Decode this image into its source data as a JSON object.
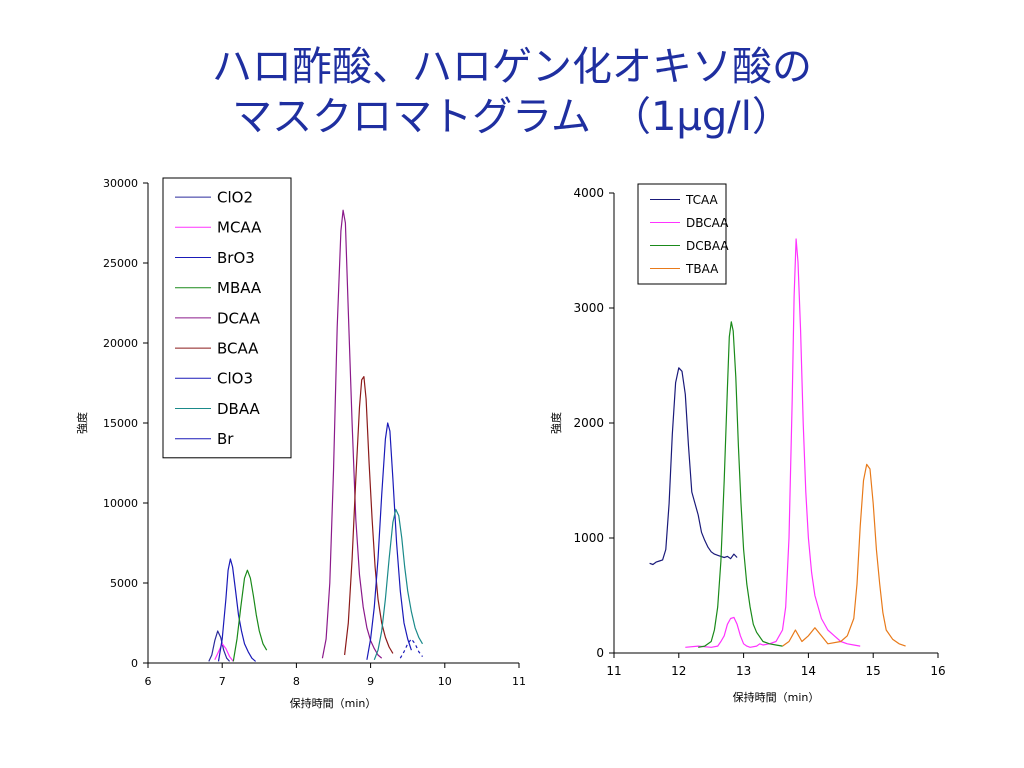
{
  "slide": {
    "title_line1": "ハロ酢酸、ハロゲン化オキソ酸の",
    "title_line2": "マスクロマトグラム　（1μg/l）"
  },
  "chart_data": [
    {
      "type": "line",
      "xlabel": "保持時間（min）",
      "ylabel": "強度",
      "xlim": [
        6,
        11
      ],
      "ylim": [
        0,
        30000
      ],
      "xticks": [
        6,
        7,
        8,
        9,
        10,
        11
      ],
      "yticks": [
        0,
        5000,
        10000,
        15000,
        20000,
        25000,
        30000
      ],
      "legend_position": "top-left",
      "series": [
        {
          "name": "ClO2",
          "color": "#2b2b9c",
          "dashed": false,
          "x": [
            6.82,
            6.86,
            6.9,
            6.94,
            6.98,
            7.02,
            7.06,
            7.1
          ],
          "y": [
            100,
            500,
            1400,
            2000,
            1600,
            800,
            300,
            100
          ]
        },
        {
          "name": "MCAA",
          "color": "#ff33ff",
          "dashed": false,
          "x": [
            6.9,
            6.95,
            7.0,
            7.05,
            7.1,
            7.15
          ],
          "y": [
            200,
            700,
            1200,
            900,
            400,
            100
          ]
        },
        {
          "name": "BrO3",
          "color": "#1a1ab8",
          "dashed": false,
          "x": [
            6.95,
            7.0,
            7.05,
            7.08,
            7.11,
            7.14,
            7.18,
            7.22,
            7.26,
            7.3,
            7.35,
            7.4,
            7.45
          ],
          "y": [
            100,
            1500,
            4000,
            5800,
            6500,
            6000,
            4500,
            3000,
            2000,
            1200,
            700,
            300,
            100
          ]
        },
        {
          "name": "MBAA",
          "color": "#1a8a1a",
          "dashed": false,
          "x": [
            7.15,
            7.2,
            7.25,
            7.3,
            7.34,
            7.38,
            7.42,
            7.46,
            7.5,
            7.55,
            7.6
          ],
          "y": [
            100,
            1500,
            3500,
            5300,
            5800,
            5300,
            4200,
            3000,
            2000,
            1200,
            800
          ]
        },
        {
          "name": "DCAA",
          "color": "#8b1a8b",
          "dashed": false,
          "x": [
            8.35,
            8.4,
            8.45,
            8.5,
            8.55,
            8.6,
            8.63,
            8.66,
            8.7,
            8.75,
            8.8,
            8.85,
            8.9,
            8.95,
            9.0,
            9.05,
            9.1,
            9.15
          ],
          "y": [
            300,
            1500,
            5000,
            12000,
            21000,
            27000,
            28300,
            27500,
            22000,
            15000,
            9000,
            5500,
            3500,
            2200,
            1400,
            900,
            500,
            300
          ]
        },
        {
          "name": "BCAA",
          "color": "#8b1a1a",
          "dashed": false,
          "x": [
            8.65,
            8.7,
            8.75,
            8.8,
            8.85,
            8.88,
            8.91,
            8.94,
            8.98,
            9.02,
            9.06,
            9.1,
            9.15,
            9.2,
            9.25,
            9.3
          ],
          "y": [
            500,
            2500,
            6500,
            11500,
            16000,
            17700,
            17900,
            16500,
            12500,
            9000,
            6000,
            4000,
            2500,
            1600,
            1000,
            600
          ]
        },
        {
          "name": "ClO3",
          "color": "#1a1ab8",
          "dashed": false,
          "x": [
            8.95,
            9.0,
            9.05,
            9.1,
            9.15,
            9.2,
            9.23,
            9.26,
            9.3,
            9.35,
            9.4,
            9.45,
            9.5,
            9.55
          ],
          "y": [
            200,
            1500,
            3500,
            6500,
            10500,
            14000,
            15000,
            14500,
            11500,
            7500,
            4500,
            2500,
            1500,
            800
          ]
        },
        {
          "name": "DBAA",
          "color": "#1a8a8a",
          "dashed": false,
          "x": [
            9.05,
            9.1,
            9.15,
            9.2,
            9.25,
            9.3,
            9.34,
            9.38,
            9.42,
            9.46,
            9.5,
            9.55,
            9.6,
            9.65,
            9.7
          ],
          "y": [
            200,
            800,
            2000,
            4000,
            6500,
            8800,
            9600,
            9200,
            7800,
            6000,
            4500,
            3200,
            2200,
            1600,
            1200
          ]
        },
        {
          "name": "Br",
          "color": "#1a1ab8",
          "dashed": true,
          "x": [
            9.4,
            9.45,
            9.5,
            9.55,
            9.6,
            9.65,
            9.7
          ],
          "y": [
            300,
            700,
            1200,
            1500,
            1200,
            700,
            400
          ]
        }
      ]
    },
    {
      "type": "line",
      "xlabel": "保持時間（min）",
      "ylabel": "強度",
      "xlim": [
        11,
        16
      ],
      "ylim": [
        0,
        4000
      ],
      "xticks": [
        11,
        12,
        13,
        14,
        15,
        16
      ],
      "yticks": [
        0,
        1000,
        2000,
        3000,
        4000
      ],
      "legend_position": "top-left",
      "series": [
        {
          "name": "TCAA",
          "color": "#1a1a7a",
          "dashed": false,
          "x": [
            11.55,
            11.6,
            11.65,
            11.7,
            11.75,
            11.8,
            11.85,
            11.9,
            11.95,
            12.0,
            12.05,
            12.1,
            12.15,
            12.2,
            12.25,
            12.3,
            12.35,
            12.4,
            12.45,
            12.5,
            12.55,
            12.6,
            12.65,
            12.7,
            12.75,
            12.8,
            12.85,
            12.9
          ],
          "y": [
            780,
            770,
            790,
            800,
            810,
            900,
            1300,
            1900,
            2350,
            2480,
            2450,
            2250,
            1800,
            1400,
            1300,
            1200,
            1050,
            980,
            920,
            880,
            860,
            850,
            840,
            830,
            840,
            820,
            860,
            830
          ]
        },
        {
          "name": "DBCAA",
          "color": "#ff33ff",
          "dashed": false,
          "x": [
            12.1,
            12.3,
            12.5,
            12.6,
            12.65,
            12.7,
            12.75,
            12.8,
            12.85,
            12.9,
            12.95,
            13.0,
            13.05,
            13.1,
            13.2,
            13.25,
            13.3,
            13.4,
            13.5,
            13.6,
            13.65,
            13.7,
            13.75,
            13.78,
            13.81,
            13.84,
            13.88,
            13.92,
            13.96,
            14.0,
            14.05,
            14.1,
            14.2,
            14.3,
            14.4,
            14.5,
            14.6,
            14.7,
            14.8
          ],
          "y": [
            50,
            60,
            50,
            60,
            100,
            150,
            250,
            300,
            310,
            250,
            150,
            80,
            60,
            50,
            60,
            80,
            70,
            80,
            100,
            200,
            400,
            1000,
            2200,
            3100,
            3600,
            3400,
            2800,
            2000,
            1400,
            1000,
            700,
            500,
            300,
            200,
            150,
            100,
            80,
            70,
            60
          ]
        },
        {
          "name": "DCBAA",
          "color": "#1a8a1a",
          "dashed": false,
          "x": [
            12.3,
            12.4,
            12.5,
            12.55,
            12.6,
            12.65,
            12.7,
            12.75,
            12.78,
            12.81,
            12.84,
            12.88,
            12.92,
            12.96,
            13.0,
            13.05,
            13.1,
            13.15,
            13.2,
            13.3,
            13.4,
            13.5,
            13.6
          ],
          "y": [
            50,
            60,
            100,
            200,
            400,
            800,
            1500,
            2300,
            2750,
            2880,
            2800,
            2400,
            1800,
            1300,
            900,
            600,
            400,
            250,
            180,
            100,
            80,
            70,
            60
          ]
        },
        {
          "name": "TBAA",
          "color": "#e87a1a",
          "dashed": false,
          "x": [
            13.6,
            13.7,
            13.75,
            13.8,
            13.85,
            13.9,
            14.0,
            14.1,
            14.2,
            14.3,
            14.5,
            14.6,
            14.7,
            14.75,
            14.8,
            14.85,
            14.9,
            14.95,
            15.0,
            15.05,
            15.1,
            15.15,
            15.2,
            15.3,
            15.4,
            15.5
          ],
          "y": [
            60,
            100,
            150,
            200,
            150,
            100,
            150,
            220,
            150,
            80,
            100,
            150,
            300,
            600,
            1100,
            1500,
            1640,
            1600,
            1300,
            900,
            600,
            350,
            200,
            120,
            80,
            60
          ]
        }
      ]
    }
  ]
}
